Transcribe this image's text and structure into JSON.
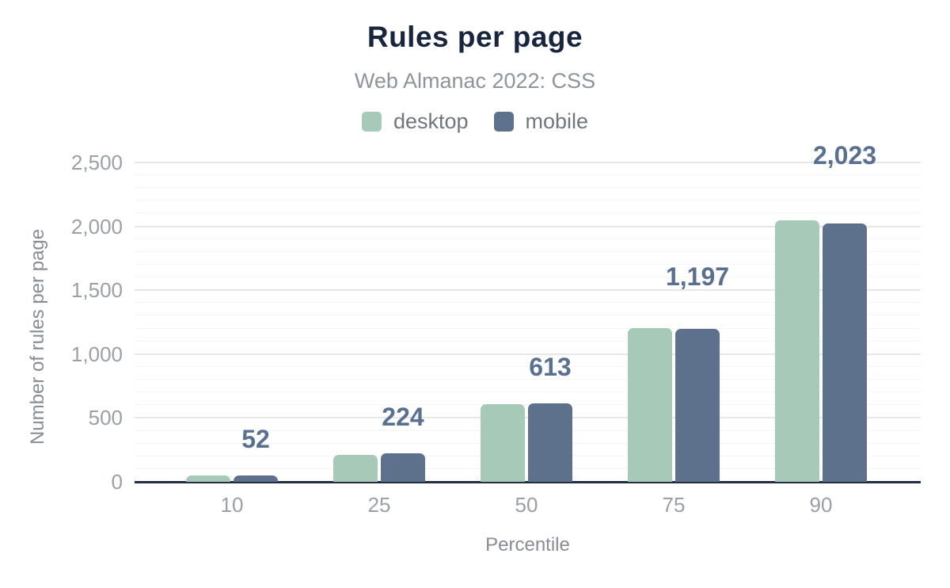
{
  "colors": {
    "title": "#17263e",
    "subtitle": "#8e9499",
    "legend_text": "#6f767d",
    "desktop": "#a6c9b8",
    "mobile": "#5e718c",
    "data_label": "#5a7090",
    "axis_tick": "#9ba0a5",
    "axis_title": "#878d93",
    "baseline": "#222e44",
    "grid_major": "#e5e7e9",
    "grid_minor": "#f3f4f6",
    "background": "#ffffff"
  },
  "chart_data": {
    "type": "bar",
    "title": "Rules per page",
    "subtitle": "Web Almanac 2022: CSS",
    "xlabel": "Percentile",
    "ylabel": "Number of rules per page",
    "categories": [
      "10",
      "25",
      "50",
      "75",
      "90"
    ],
    "series": [
      {
        "name": "desktop",
        "color": "#a6c9b8",
        "values": [
          48,
          213,
          611,
          1203,
          2045
        ],
        "estimated": true
      },
      {
        "name": "mobile",
        "color": "#5e718c",
        "values": [
          52,
          224,
          613,
          1197,
          2023
        ],
        "data_labels": [
          "52",
          "224",
          "613",
          "1,197",
          "2,023"
        ]
      }
    ],
    "ylim": [
      0,
      2500
    ],
    "yticks": [
      "0",
      "500",
      "1,000",
      "1,500",
      "2,000",
      "2,500"
    ],
    "grid": {
      "major_step": 500,
      "minor_step": 100,
      "visible": true
    },
    "legend_position": "top",
    "bar_corner_radius": 7
  }
}
